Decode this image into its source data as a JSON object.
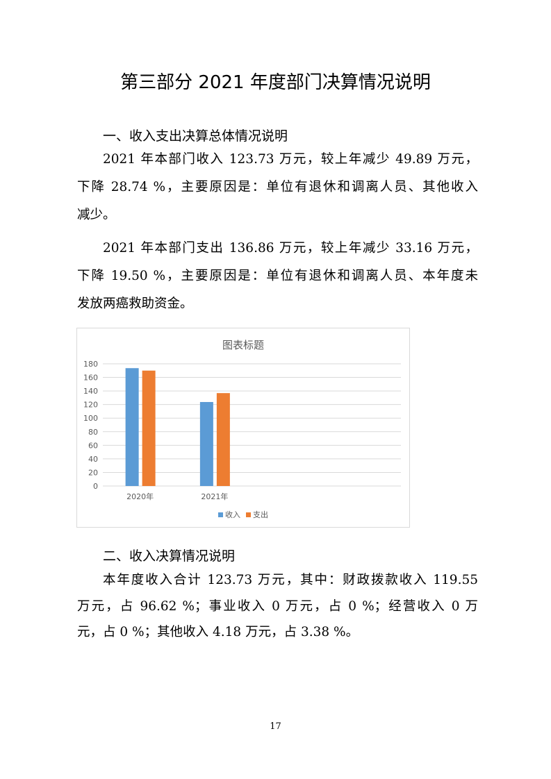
{
  "title": "第三部分 2021 年度部门决算情况说明",
  "section1": {
    "heading": "一、收入支出决算总体情况说明",
    "p1": [
      "2021 年本部门收入 123.73 万元，较上年减少 49.89 万元，",
      "下降 28.74 %，主要原因是：单位有退休和调离人员、其他收入",
      "减少。"
    ],
    "p2": [
      "2021 年本部门支出 136.86 万元，较上年减少 33.16 万元，",
      "下降 19.50 %，主要原因是：单位有退休和调离人员、本年度未",
      "发放两癌救助资金。"
    ]
  },
  "chart_data": {
    "type": "bar",
    "title": "图表标题",
    "categories": [
      "2020年",
      "2021年"
    ],
    "series": [
      {
        "name": "收入",
        "values": [
          173.62,
          123.73
        ],
        "color": "#5b9bd5"
      },
      {
        "name": "支出",
        "values": [
          170.02,
          136.86
        ],
        "color": "#ed7d31"
      }
    ],
    "ylim": [
      0,
      180
    ],
    "yticks": [
      0,
      20,
      40,
      60,
      80,
      100,
      120,
      140,
      160,
      180
    ],
    "grid": true,
    "legend": "bottom"
  },
  "section2": {
    "heading": "二、收入决算情况说明",
    "p1": [
      "本年度收入合计 123.73 万元，其中：财政拨款收入 119.55",
      "万元，占 96.62 %；事业收入 0 万元，占 0 %；经营收入 0 万",
      "元，占 0 %；其他收入 4.18 万元，占 3.38 %。"
    ]
  },
  "page_number": "17"
}
